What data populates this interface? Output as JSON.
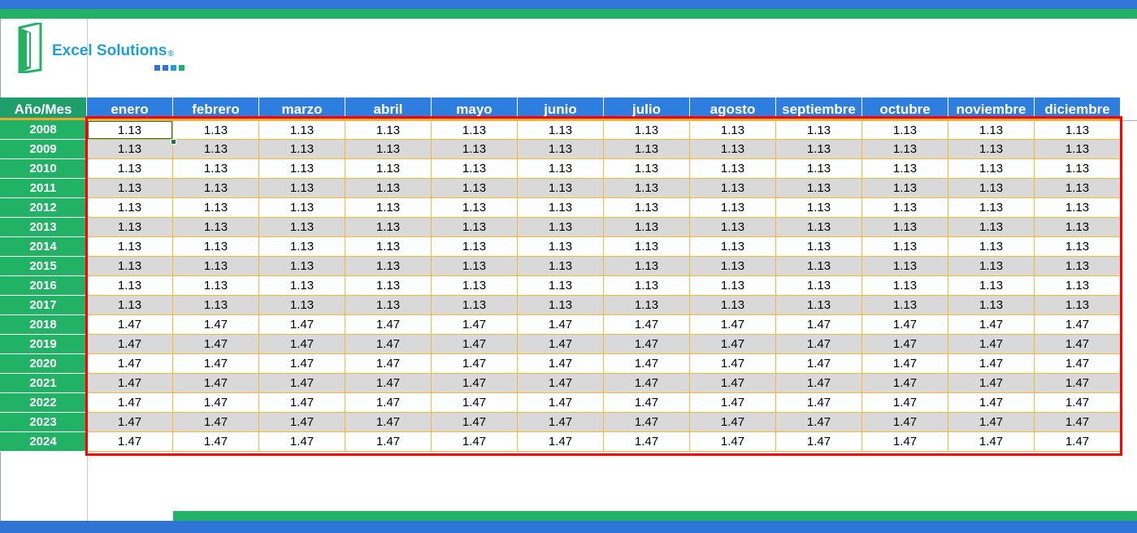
{
  "brand": {
    "name": "Excel Solutions",
    "registered": "®",
    "accent_colors": [
      "#2e75d6",
      "#22b266",
      "#1f9fd6",
      "#f4a72a"
    ],
    "logo_icon": "excel-door-icon"
  },
  "table": {
    "corner_label": "Año/Mes",
    "months": [
      "enero",
      "febrero",
      "marzo",
      "abril",
      "mayo",
      "junio",
      "julio",
      "agosto",
      "septiembre",
      "octubre",
      "noviembre",
      "diciembre"
    ],
    "rows": [
      {
        "year": "2008",
        "values": [
          "1.13",
          "1.13",
          "1.13",
          "1.13",
          "1.13",
          "1.13",
          "1.13",
          "1.13",
          "1.13",
          "1.13",
          "1.13",
          "1.13"
        ]
      },
      {
        "year": "2009",
        "values": [
          "1.13",
          "1.13",
          "1.13",
          "1.13",
          "1.13",
          "1.13",
          "1.13",
          "1.13",
          "1.13",
          "1.13",
          "1.13",
          "1.13"
        ]
      },
      {
        "year": "2010",
        "values": [
          "1.13",
          "1.13",
          "1.13",
          "1.13",
          "1.13",
          "1.13",
          "1.13",
          "1.13",
          "1.13",
          "1.13",
          "1.13",
          "1.13"
        ]
      },
      {
        "year": "2011",
        "values": [
          "1.13",
          "1.13",
          "1.13",
          "1.13",
          "1.13",
          "1.13",
          "1.13",
          "1.13",
          "1.13",
          "1.13",
          "1.13",
          "1.13"
        ]
      },
      {
        "year": "2012",
        "values": [
          "1.13",
          "1.13",
          "1.13",
          "1.13",
          "1.13",
          "1.13",
          "1.13",
          "1.13",
          "1.13",
          "1.13",
          "1.13",
          "1.13"
        ]
      },
      {
        "year": "2013",
        "values": [
          "1.13",
          "1.13",
          "1.13",
          "1.13",
          "1.13",
          "1.13",
          "1.13",
          "1.13",
          "1.13",
          "1.13",
          "1.13",
          "1.13"
        ]
      },
      {
        "year": "2014",
        "values": [
          "1.13",
          "1.13",
          "1.13",
          "1.13",
          "1.13",
          "1.13",
          "1.13",
          "1.13",
          "1.13",
          "1.13",
          "1.13",
          "1.13"
        ]
      },
      {
        "year": "2015",
        "values": [
          "1.13",
          "1.13",
          "1.13",
          "1.13",
          "1.13",
          "1.13",
          "1.13",
          "1.13",
          "1.13",
          "1.13",
          "1.13",
          "1.13"
        ]
      },
      {
        "year": "2016",
        "values": [
          "1.13",
          "1.13",
          "1.13",
          "1.13",
          "1.13",
          "1.13",
          "1.13",
          "1.13",
          "1.13",
          "1.13",
          "1.13",
          "1.13"
        ]
      },
      {
        "year": "2017",
        "values": [
          "1.13",
          "1.13",
          "1.13",
          "1.13",
          "1.13",
          "1.13",
          "1.13",
          "1.13",
          "1.13",
          "1.13",
          "1.13",
          "1.13"
        ]
      },
      {
        "year": "2018",
        "values": [
          "1.47",
          "1.47",
          "1.47",
          "1.47",
          "1.47",
          "1.47",
          "1.47",
          "1.47",
          "1.47",
          "1.47",
          "1.47",
          "1.47"
        ]
      },
      {
        "year": "2019",
        "values": [
          "1.47",
          "1.47",
          "1.47",
          "1.47",
          "1.47",
          "1.47",
          "1.47",
          "1.47",
          "1.47",
          "1.47",
          "1.47",
          "1.47"
        ]
      },
      {
        "year": "2020",
        "values": [
          "1.47",
          "1.47",
          "1.47",
          "1.47",
          "1.47",
          "1.47",
          "1.47",
          "1.47",
          "1.47",
          "1.47",
          "1.47",
          "1.47"
        ]
      },
      {
        "year": "2021",
        "values": [
          "1.47",
          "1.47",
          "1.47",
          "1.47",
          "1.47",
          "1.47",
          "1.47",
          "1.47",
          "1.47",
          "1.47",
          "1.47",
          "1.47"
        ]
      },
      {
        "year": "2022",
        "values": [
          "1.47",
          "1.47",
          "1.47",
          "1.47",
          "1.47",
          "1.47",
          "1.47",
          "1.47",
          "1.47",
          "1.47",
          "1.47",
          "1.47"
        ]
      },
      {
        "year": "2023",
        "values": [
          "1.47",
          "1.47",
          "1.47",
          "1.47",
          "1.47",
          "1.47",
          "1.47",
          "1.47",
          "1.47",
          "1.47",
          "1.47",
          "1.47"
        ]
      },
      {
        "year": "2024",
        "values": [
          "1.47",
          "1.47",
          "1.47",
          "1.47",
          "1.47",
          "1.47",
          "1.47",
          "1.47",
          "1.47",
          "1.47",
          "1.47",
          "1.47"
        ]
      }
    ],
    "selected_cell": {
      "year": "2008",
      "month": "enero"
    }
  }
}
